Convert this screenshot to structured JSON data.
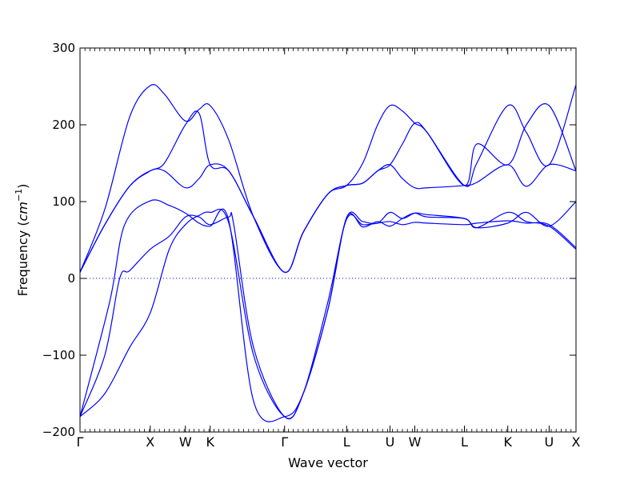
{
  "chart_data": {
    "type": "line",
    "xlabel": "Wave vector",
    "ylabel_main": "Frequency (",
    "ylabel_unit": "cm",
    "ylabel_exp": "−1",
    "ylabel_close": ")",
    "ylim": [
      -200,
      300
    ],
    "y_ticks": [
      -200,
      -100,
      0,
      100,
      200,
      300
    ],
    "y_tick_labels": [
      "−200",
      "−100",
      "0",
      "100",
      "200",
      "300"
    ],
    "x_points": [
      {
        "label": "Γ",
        "pos": 0.0
      },
      {
        "label": "X",
        "pos": 0.1416
      },
      {
        "label": "W",
        "pos": 0.2125
      },
      {
        "label": "K",
        "pos": 0.2625
      },
      {
        "label": "Γ",
        "pos": 0.4125
      },
      {
        "label": "L",
        "pos": 0.5375
      },
      {
        "label": "U",
        "pos": 0.625
      },
      {
        "label": "W",
        "pos": 0.675
      },
      {
        "label": "L",
        "pos": 0.775
      },
      {
        "label": "K",
        "pos": 0.8625
      },
      {
        "label": "U",
        "pos": 0.9458
      },
      {
        "label": "X",
        "pos": 1.0
      }
    ],
    "zero_line": true,
    "line_color": "#0000ff",
    "zero_line_color": "#0000ff",
    "series": [
      {
        "x": [
          0,
          0.05,
          0.1,
          0.1416,
          0.18,
          0.2125,
          0.24,
          0.2625,
          0.3,
          0.35,
          0.4125,
          0.45,
          0.5,
          0.5375,
          0.57,
          0.6,
          0.625,
          0.65,
          0.675,
          0.7,
          0.775,
          0.8,
          0.8625,
          0.9,
          0.9458,
          1.0
        ],
        "y": [
          -180,
          -150,
          -90,
          -45,
          38,
          70,
          82,
          86,
          72,
          -100,
          -180,
          -150,
          -30,
          77,
          70,
          72,
          74,
          70,
          73,
          72,
          70,
          72,
          75,
          72,
          70,
          40
        ]
      },
      {
        "x": [
          0,
          0.05,
          0.08,
          0.1,
          0.1416,
          0.18,
          0.2125,
          0.24,
          0.2625,
          0.3,
          0.31,
          0.35,
          0.4125,
          0.45,
          0.5,
          0.5375,
          0.57,
          0.6,
          0.625,
          0.65,
          0.675,
          0.7,
          0.775,
          0.8,
          0.8625,
          0.9,
          0.9458,
          1.0
        ],
        "y": [
          -180,
          -100,
          0,
          10,
          38,
          55,
          80,
          80,
          70,
          80,
          70,
          -90,
          -180,
          -150,
          -40,
          79,
          67,
          74,
          68,
          78,
          85,
          80,
          78,
          66,
          86,
          74,
          68,
          38
        ]
      },
      {
        "x": [
          0,
          0.06,
          0.09,
          0.1416,
          0.18,
          0.2125,
          0.24,
          0.2625,
          0.3,
          0.35,
          0.4125,
          0.45,
          0.5,
          0.5375,
          0.57,
          0.6,
          0.625,
          0.65,
          0.675,
          0.7,
          0.775,
          0.8,
          0.8625,
          0.9,
          0.9458,
          1.0
        ],
        "y": [
          -180,
          -30,
          70,
          101,
          95,
          85,
          72,
          68,
          75,
          -160,
          -180,
          -150,
          -40,
          79,
          74,
          72,
          86,
          78,
          85,
          83,
          78,
          66,
          72,
          86,
          68,
          100
        ]
      },
      {
        "x": [
          0,
          0.05,
          0.1,
          0.1416,
          0.17,
          0.2125,
          0.24,
          0.2625,
          0.3,
          0.35,
          0.4125,
          0.45,
          0.5,
          0.5375,
          0.57,
          0.6,
          0.625,
          0.65,
          0.675,
          0.7,
          0.775,
          0.8,
          0.8625,
          0.9,
          0.9458,
          1.0
        ],
        "y": [
          8,
          70,
          120,
          140,
          140,
          118,
          130,
          148,
          140,
          80,
          8,
          60,
          110,
          121,
          124,
          140,
          148,
          130,
          118,
          118,
          121,
          125,
          148,
          120,
          148,
          140
        ]
      },
      {
        "x": [
          0,
          0.05,
          0.1,
          0.1416,
          0.17,
          0.2125,
          0.24,
          0.2625,
          0.3,
          0.35,
          0.4125,
          0.45,
          0.5,
          0.5375,
          0.57,
          0.6,
          0.625,
          0.65,
          0.675,
          0.7,
          0.775,
          0.8,
          0.8625,
          0.9,
          0.9458,
          1.0
        ],
        "y": [
          8,
          70,
          120,
          140,
          150,
          200,
          215,
          148,
          140,
          80,
          8,
          60,
          110,
          121,
          124,
          140,
          148,
          175,
          202,
          190,
          121,
          175,
          148,
          200,
          225,
          140
        ]
      },
      {
        "x": [
          0,
          0.05,
          0.1,
          0.1416,
          0.17,
          0.2125,
          0.24,
          0.2625,
          0.3,
          0.35,
          0.4125,
          0.45,
          0.5,
          0.5375,
          0.57,
          0.6,
          0.625,
          0.65,
          0.675,
          0.7,
          0.775,
          0.8,
          0.8625,
          0.9,
          0.9458,
          1.0
        ],
        "y": [
          8,
          90,
          210,
          251,
          240,
          205,
          220,
          225,
          180,
          80,
          8,
          60,
          110,
          121,
          150,
          200,
          225,
          218,
          202,
          190,
          121,
          150,
          225,
          190,
          148,
          252
        ]
      }
    ]
  }
}
